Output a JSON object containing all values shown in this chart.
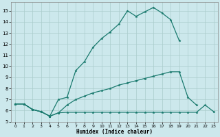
{
  "title": "",
  "xlabel": "Humidex (Indice chaleur)",
  "ylabel": "",
  "bg_color": "#cce8ec",
  "grid_color": "#aacccc",
  "line_color": "#1a7a6e",
  "xlim": [
    -0.5,
    23.5
  ],
  "ylim": [
    5,
    15.8
  ],
  "yticks": [
    5,
    6,
    7,
    8,
    9,
    10,
    11,
    12,
    13,
    14,
    15
  ],
  "xticks": [
    0,
    1,
    2,
    3,
    4,
    5,
    6,
    7,
    8,
    9,
    10,
    11,
    12,
    13,
    14,
    15,
    16,
    17,
    18,
    19,
    20,
    21,
    22,
    23
  ],
  "line1_x": [
    0,
    1,
    2,
    3,
    4,
    5,
    6,
    7,
    8,
    9,
    10,
    11,
    12,
    13,
    14,
    15,
    16,
    17,
    18,
    19
  ],
  "line1_y": [
    6.6,
    6.6,
    6.1,
    5.9,
    5.5,
    7.0,
    7.2,
    9.6,
    10.4,
    11.7,
    12.5,
    13.1,
    13.8,
    15.0,
    14.5,
    14.9,
    15.3,
    14.8,
    14.2,
    12.3
  ],
  "line2_x": [
    0,
    1,
    2,
    3,
    4,
    5,
    6,
    7,
    8,
    9,
    10,
    11,
    12,
    13,
    14,
    15,
    16,
    17,
    18,
    19,
    20,
    21
  ],
  "line2_y": [
    6.6,
    6.6,
    6.1,
    5.9,
    5.5,
    5.8,
    6.5,
    7.0,
    7.3,
    7.6,
    7.8,
    8.0,
    8.3,
    8.5,
    8.7,
    8.9,
    9.1,
    9.3,
    9.5,
    9.5,
    7.2,
    6.5
  ],
  "line3_x": [
    0,
    1,
    2,
    3,
    4,
    5,
    6,
    7,
    8,
    9,
    10,
    11,
    12,
    13,
    14,
    15,
    16,
    17,
    18,
    19,
    20,
    21,
    22,
    23
  ],
  "line3_y": [
    6.6,
    6.6,
    6.1,
    5.9,
    5.5,
    5.8,
    5.85,
    5.85,
    5.85,
    5.85,
    5.85,
    5.85,
    5.85,
    5.85,
    5.85,
    5.85,
    5.85,
    5.85,
    5.85,
    5.85,
    5.85,
    5.85,
    6.5,
    5.9
  ]
}
